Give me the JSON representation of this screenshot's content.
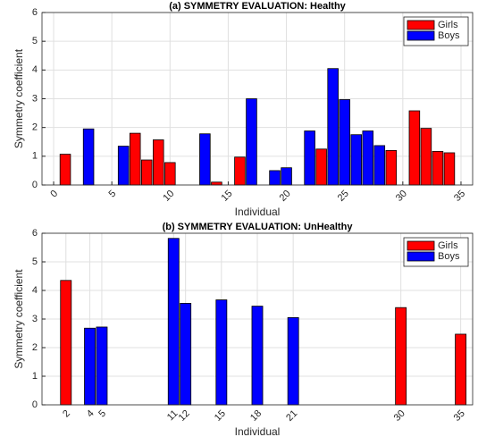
{
  "chart_data": [
    {
      "type": "bar",
      "title": "(a) SYMMETRY EVALUATION: Healthy",
      "x_label": "Individual",
      "y_label": "Symmetry coefficient",
      "series": [
        {
          "name": "Girls",
          "color": "#ff0000",
          "x": [
            1,
            7,
            8,
            9,
            10,
            14,
            16,
            23,
            29,
            31,
            32,
            33,
            34
          ],
          "values": [
            1.07,
            1.8,
            0.87,
            1.57,
            0.78,
            0.1,
            0.97,
            1.25,
            1.2,
            2.58,
            1.97,
            1.17,
            1.12
          ]
        },
        {
          "name": "Boys",
          "color": "#0000ff",
          "x": [
            3,
            6,
            13,
            17,
            19,
            20,
            22,
            24,
            25,
            26,
            27,
            28
          ],
          "values": [
            1.95,
            1.35,
            1.78,
            3.0,
            0.5,
            0.6,
            1.88,
            4.05,
            2.97,
            1.75,
            1.88,
            1.37
          ]
        }
      ],
      "xlim": [
        -1,
        36
      ],
      "xticks": [
        0,
        5,
        10,
        15,
        20,
        25,
        30,
        35
      ],
      "ylim": [
        0,
        6
      ],
      "yticks": [
        0,
        1,
        2,
        3,
        4,
        5,
        6
      ],
      "grid": true,
      "legend": "northeast"
    },
    {
      "type": "bar",
      "title": "(b) SYMMETRY EVALUATION: UnHealthy",
      "x_label": "Individual",
      "y_label": "Symmetry coefficient",
      "series": [
        {
          "name": "Girls",
          "color": "#ff0000",
          "x": [
            2,
            30,
            35
          ],
          "values": [
            4.35,
            3.4,
            2.47
          ]
        },
        {
          "name": "Boys",
          "color": "#0000ff",
          "x": [
            4,
            5,
            11,
            12,
            15,
            18,
            21
          ],
          "values": [
            2.68,
            2.72,
            5.82,
            3.55,
            3.67,
            3.45,
            3.05
          ]
        }
      ],
      "xlim": [
        0,
        36
      ],
      "xticks": [
        2,
        4,
        5,
        11,
        12,
        15,
        18,
        21,
        30,
        35
      ],
      "ylim": [
        0,
        6
      ],
      "yticks": [
        0,
        1,
        2,
        3,
        4,
        5,
        6
      ],
      "grid": true,
      "legend": "northeast"
    }
  ]
}
